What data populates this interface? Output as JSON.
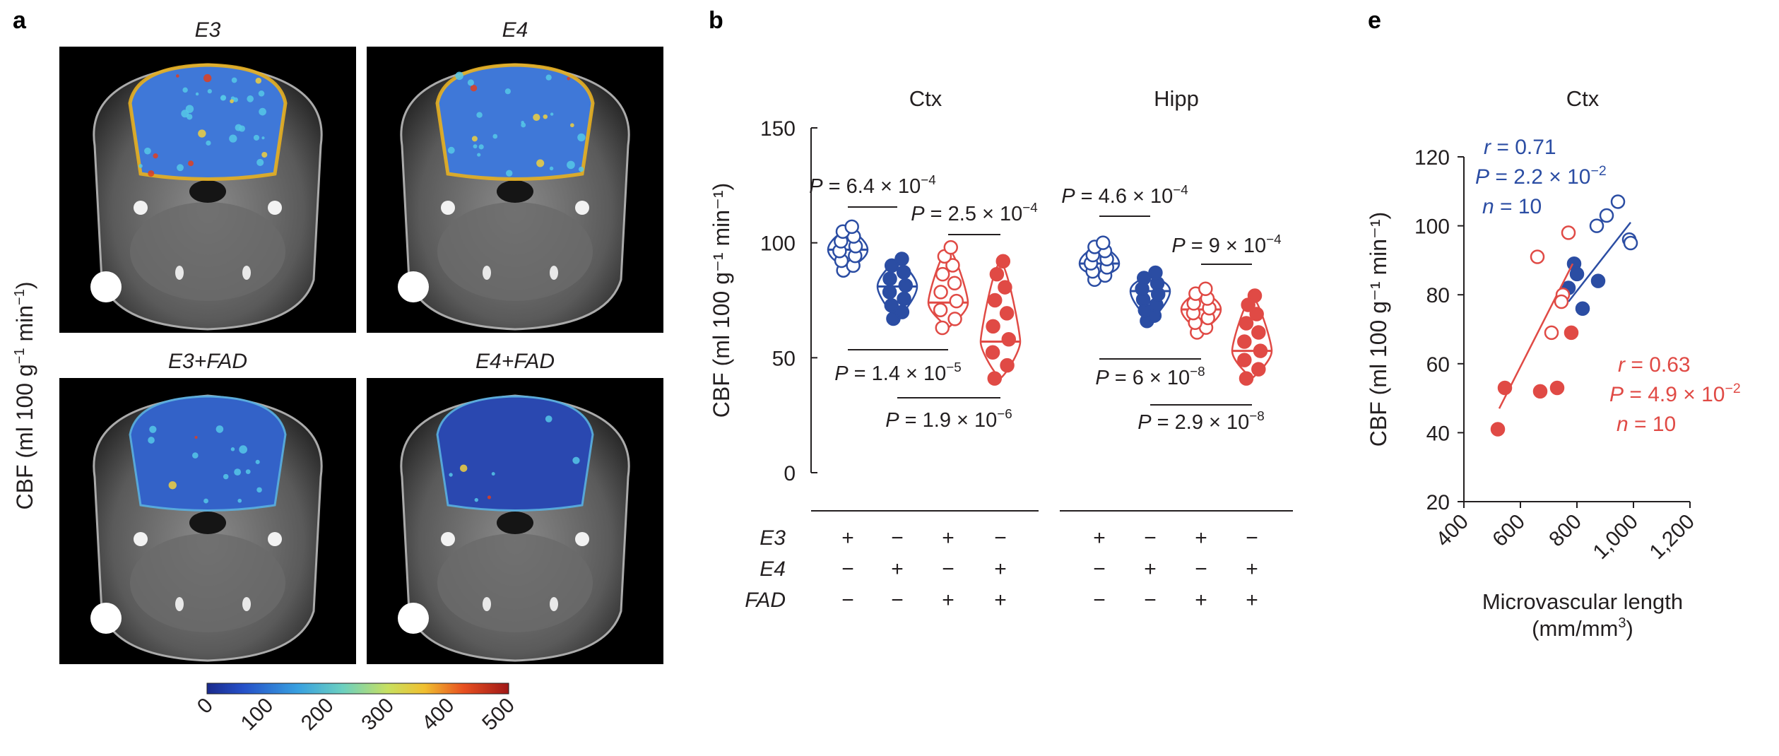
{
  "colors": {
    "blue": "#2b4da3",
    "red": "#e04a45",
    "text": "#231f20"
  },
  "panel_a": {
    "label": "a",
    "y_label": "CBF (ml 100 g",
    "y_label_exp": "−1",
    "y_label_tail": " min",
    "y_label_exp2": "−1",
    "y_label_close": ")",
    "images": [
      {
        "title": "E3",
        "signal": 0.55
      },
      {
        "title": "E4",
        "signal": 0.42
      },
      {
        "title": "E3+FAD",
        "signal": 0.25
      },
      {
        "title": "E4+FAD",
        "signal": 0.12
      }
    ],
    "colorbar_ticks": [
      "0",
      "100",
      "200",
      "300",
      "400",
      "500"
    ],
    "colorbar_range": [
      0,
      500
    ]
  },
  "chart_data": [
    {
      "type": "scatter",
      "panel": "b",
      "ylabel": "CBF (ml 100 g⁻¹ min⁻¹)",
      "ylim": [
        0,
        150
      ],
      "yticks": [
        "0",
        "50",
        "100",
        "150"
      ],
      "facets": [
        {
          "title": "Ctx",
          "groups": [
            {
              "E3": "+",
              "E4": "−",
              "FAD": "−",
              "color": "blue",
              "filled": false,
              "mean": 97,
              "min": 88,
              "max": 107
            },
            {
              "E3": "−",
              "E4": "+",
              "FAD": "−",
              "color": "blue",
              "filled": true,
              "mean": 81,
              "min": 67,
              "max": 93
            },
            {
              "E3": "+",
              "E4": "−",
              "FAD": "+",
              "color": "red",
              "filled": false,
              "mean": 74,
              "min": 63,
              "max": 98
            },
            {
              "E3": "−",
              "E4": "+",
              "FAD": "+",
              "color": "red",
              "filled": true,
              "mean": 57,
              "min": 41,
              "max": 92
            }
          ],
          "comparisons": [
            {
              "groups": [
                1,
                2
              ],
              "text": "P = 6.4 × 10",
              "exp": "−4"
            },
            {
              "groups": [
                3,
                4
              ],
              "text": "P = 2.5 × 10",
              "exp": "−4"
            },
            {
              "groups": [
                1,
                3
              ],
              "text": "P = 1.4 × 10",
              "exp": "−5"
            },
            {
              "groups": [
                2,
                4
              ],
              "text": "P = 1.9 × 10",
              "exp": "−6"
            }
          ]
        },
        {
          "title": "Hipp",
          "groups": [
            {
              "E3": "+",
              "E4": "−",
              "FAD": "−",
              "color": "blue",
              "filled": false,
              "mean": 91,
              "min": 84,
              "max": 100
            },
            {
              "E3": "−",
              "E4": "+",
              "FAD": "−",
              "color": "blue",
              "filled": true,
              "mean": 79,
              "min": 66,
              "max": 87
            },
            {
              "E3": "+",
              "E4": "−",
              "FAD": "+",
              "color": "red",
              "filled": false,
              "mean": 71,
              "min": 61,
              "max": 80
            },
            {
              "E3": "−",
              "E4": "+",
              "FAD": "+",
              "color": "red",
              "filled": true,
              "mean": 53,
              "min": 41,
              "max": 77
            }
          ],
          "comparisons": [
            {
              "groups": [
                1,
                2
              ],
              "text": "P = 4.6 × 10",
              "exp": "−4"
            },
            {
              "groups": [
                3,
                4
              ],
              "text": "P = 9 × 10",
              "exp": "−4"
            },
            {
              "groups": [
                1,
                3
              ],
              "text": "P = 6 × 10",
              "exp": "−8"
            },
            {
              "groups": [
                2,
                4
              ],
              "text": "P = 2.9 × 10",
              "exp": "−8"
            }
          ]
        }
      ],
      "row_labels": [
        "E3",
        "E4",
        "FAD"
      ]
    },
    {
      "type": "scatter",
      "panel": "e",
      "title": "Ctx",
      "xlabel": "Microvascular length",
      "xlabel_unit": "(mm/mm",
      "xlabel_unit_exp": "3",
      "xlabel_unit_close": ")",
      "ylabel": "CBF (ml 100 g⁻¹ min⁻¹)",
      "xlim": [
        400,
        1200
      ],
      "ylim": [
        20,
        120
      ],
      "xticks": [
        "400",
        "600",
        "800",
        "1,000",
        "1,200"
      ],
      "yticks": [
        "20",
        "40",
        "60",
        "80",
        "100",
        "120"
      ],
      "series": [
        {
          "color": "blue",
          "stats": {
            "r": "r = 0.71",
            "p": "P = 2.2 × 10",
            "p_exp": "−2",
            "n": "n = 10"
          },
          "fit": [
            [
              770,
              78
            ],
            [
              990,
              101
            ]
          ],
          "points": [
            {
              "x": 870,
              "y": 100,
              "filled": false
            },
            {
              "x": 905,
              "y": 103,
              "filled": false
            },
            {
              "x": 945,
              "y": 107,
              "filled": false
            },
            {
              "x": 985,
              "y": 96,
              "filled": false
            },
            {
              "x": 990,
              "y": 95,
              "filled": false
            },
            {
              "x": 770,
              "y": 82,
              "filled": true
            },
            {
              "x": 790,
              "y": 89,
              "filled": true
            },
            {
              "x": 800,
              "y": 86,
              "filled": true
            },
            {
              "x": 820,
              "y": 76,
              "filled": true
            },
            {
              "x": 875,
              "y": 84,
              "filled": true
            }
          ]
        },
        {
          "color": "red",
          "stats": {
            "r": "r = 0.63",
            "p": "P = 4.9 × 10",
            "p_exp": "−2",
            "n": "n = 10"
          },
          "fit": [
            [
              525,
              47
            ],
            [
              785,
              89
            ]
          ],
          "points": [
            {
              "x": 660,
              "y": 91,
              "filled": false
            },
            {
              "x": 770,
              "y": 98,
              "filled": false
            },
            {
              "x": 750,
              "y": 80,
              "filled": false
            },
            {
              "x": 745,
              "y": 78,
              "filled": false
            },
            {
              "x": 710,
              "y": 69,
              "filled": false
            },
            {
              "x": 520,
              "y": 41,
              "filled": true
            },
            {
              "x": 545,
              "y": 53,
              "filled": true
            },
            {
              "x": 670,
              "y": 52,
              "filled": true
            },
            {
              "x": 730,
              "y": 53,
              "filled": true
            },
            {
              "x": 780,
              "y": 69,
              "filled": true
            }
          ]
        }
      ]
    }
  ],
  "labels": {
    "panel_b": "b",
    "panel_e": "e"
  }
}
